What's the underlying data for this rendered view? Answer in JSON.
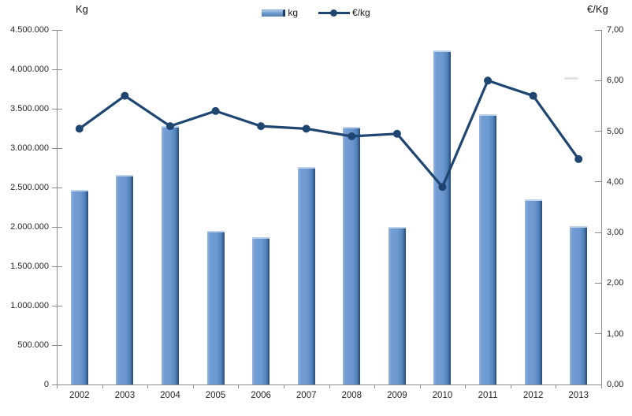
{
  "chart_data": {
    "type": "combo",
    "title": "",
    "categories": [
      "2002",
      "2003",
      "2004",
      "2005",
      "2006",
      "2007",
      "2008",
      "2009",
      "2010",
      "2011",
      "2012",
      "2013"
    ],
    "series": [
      {
        "name": "kg",
        "type": "bar",
        "axis": "left",
        "color": "#6e9ad1",
        "values": [
          2470000,
          2660000,
          3280000,
          1950000,
          1870000,
          2760000,
          3270000,
          2000000,
          4240000,
          3430000,
          2350000,
          2010000
        ]
      },
      {
        "name": "€/kg",
        "type": "line",
        "axis": "right",
        "color": "#1f4571",
        "values": [
          5.05,
          5.7,
          5.1,
          5.4,
          5.1,
          5.05,
          4.9,
          4.95,
          3.9,
          6.0,
          5.7,
          4.45
        ]
      }
    ],
    "y_left": {
      "title": "Kg",
      "min": 0,
      "max": 4500000,
      "step": 500000,
      "tick_labels": [
        "4.500.000",
        "4.000.000",
        "3.500.000",
        "3.000.000",
        "2.500.000",
        "2.000.000",
        "1.500.000",
        "1.000.000",
        "500.000",
        "0"
      ]
    },
    "y_right": {
      "title": "€/Kg",
      "min": 0,
      "max": 7,
      "step": 1,
      "tick_labels": [
        "7,00",
        "6,00",
        "5,00",
        "4,00",
        "3,00",
        "2,00",
        "1,00",
        "0,00"
      ]
    },
    "legend": {
      "position": "top",
      "items": [
        "kg",
        "€/kg"
      ]
    },
    "grid": "off"
  }
}
